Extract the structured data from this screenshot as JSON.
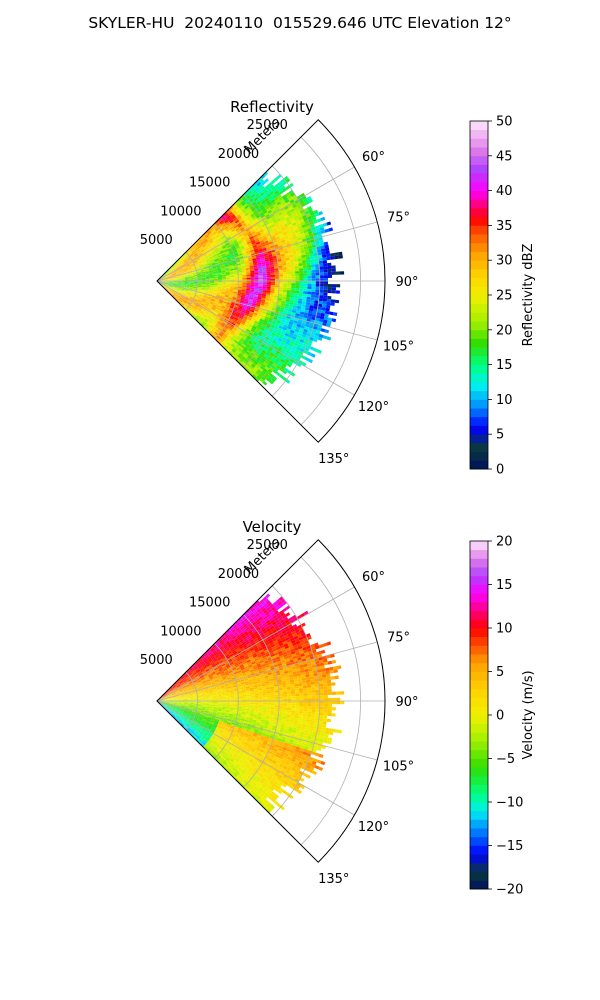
{
  "figure_title": "SKYLER-HU  20240110  015529.646 UTC Elevation 12°",
  "chart_data": [
    {
      "type": "polar-sector",
      "title": "Reflectivity",
      "radial_label": "Meters",
      "radial_ticks": [
        "5000",
        "10000",
        "15000",
        "20000",
        "25000"
      ],
      "radial_tick_values": [
        5000,
        10000,
        15000,
        20000,
        25000
      ],
      "angle_ticks": [
        "60°",
        "75°",
        "90°",
        "105°",
        "120°",
        "135°"
      ],
      "angle_tick_values": [
        60,
        75,
        90,
        105,
        120,
        135
      ],
      "azimuth_range_deg": [
        45,
        135
      ],
      "max_range_m": 28000,
      "colorbar": {
        "label": "Reflectivity dBZ",
        "range": [
          0,
          50
        ],
        "tick_values": [
          0,
          5,
          10,
          15,
          20,
          25,
          30,
          35,
          40,
          45,
          50
        ],
        "tick_labels": [
          "0",
          "5",
          "10",
          "15",
          "20",
          "25",
          "30",
          "35",
          "40",
          "45",
          "50"
        ],
        "stops": [
          {
            "v": 0,
            "c": "#001060"
          },
          {
            "v": 3,
            "c": "#0a3a3a"
          },
          {
            "v": 6,
            "c": "#0000ff"
          },
          {
            "v": 9,
            "c": "#0090ff"
          },
          {
            "v": 12,
            "c": "#00f0f0"
          },
          {
            "v": 15,
            "c": "#00ff80"
          },
          {
            "v": 18,
            "c": "#30dd00"
          },
          {
            "v": 21,
            "c": "#a0f000"
          },
          {
            "v": 25,
            "c": "#f0f000"
          },
          {
            "v": 28,
            "c": "#ffd000"
          },
          {
            "v": 31,
            "c": "#ffa000"
          },
          {
            "v": 34,
            "c": "#ff5000"
          },
          {
            "v": 36,
            "c": "#ff0000"
          },
          {
            "v": 38,
            "c": "#ff0080"
          },
          {
            "v": 40,
            "c": "#ff00ff"
          },
          {
            "v": 43,
            "c": "#b040ff"
          },
          {
            "v": 46,
            "c": "#e080e8"
          },
          {
            "v": 50,
            "c": "#ffe8ff"
          }
        ]
      }
    },
    {
      "type": "polar-sector",
      "title": "Velocity",
      "radial_label": "Meters",
      "radial_ticks": [
        "5000",
        "10000",
        "15000",
        "20000",
        "25000"
      ],
      "radial_tick_values": [
        5000,
        10000,
        15000,
        20000,
        25000
      ],
      "angle_ticks": [
        "60°",
        "75°",
        "90°",
        "105°",
        "120°",
        "135°"
      ],
      "angle_tick_values": [
        60,
        75,
        90,
        105,
        120,
        135
      ],
      "azimuth_range_deg": [
        45,
        135
      ],
      "max_range_m": 28000,
      "colorbar": {
        "label": "Velocity (m/s)",
        "range": [
          -20,
          20
        ],
        "tick_values": [
          -20,
          -15,
          -10,
          -5,
          0,
          5,
          10,
          15,
          20
        ],
        "tick_labels": [
          "−20",
          "−15",
          "−10",
          "−5",
          "0",
          "5",
          "10",
          "15",
          "20"
        ],
        "stops": [
          {
            "v": -20,
            "c": "#001060"
          },
          {
            "v": -18,
            "c": "#0a3a3a"
          },
          {
            "v": -16,
            "c": "#0000ff"
          },
          {
            "v": -13,
            "c": "#0090ff"
          },
          {
            "v": -11,
            "c": "#00f0f0"
          },
          {
            "v": -9,
            "c": "#00ff80"
          },
          {
            "v": -6,
            "c": "#30dd00"
          },
          {
            "v": -3,
            "c": "#a0f000"
          },
          {
            "v": 0,
            "c": "#f0f000"
          },
          {
            "v": 3,
            "c": "#ffd000"
          },
          {
            "v": 6,
            "c": "#ffa000"
          },
          {
            "v": 8,
            "c": "#ff5000"
          },
          {
            "v": 10,
            "c": "#ff0000"
          },
          {
            "v": 12,
            "c": "#ff0080"
          },
          {
            "v": 14,
            "c": "#ff00ff"
          },
          {
            "v": 16,
            "c": "#b040ff"
          },
          {
            "v": 18,
            "c": "#e080e8"
          },
          {
            "v": 20,
            "c": "#ffe8ff"
          }
        ]
      }
    }
  ]
}
